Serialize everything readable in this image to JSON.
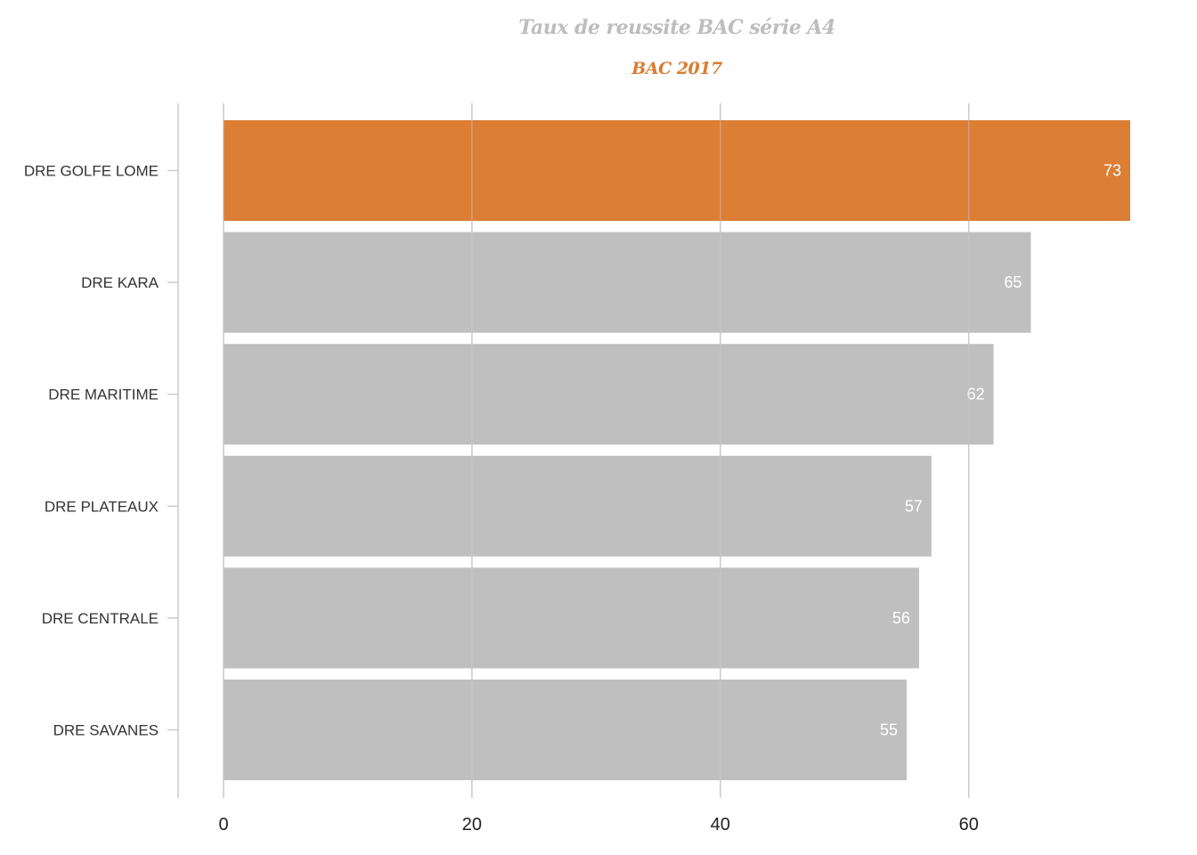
{
  "chart_data": {
    "type": "bar",
    "orientation": "horizontal",
    "title": "Taux de reussite BAC série A4",
    "subtitle": "BAC 2017",
    "categories": [
      "DRE GOLFE LOME",
      "DRE KARA",
      "DRE MARITIME",
      "DRE PLATEAUX",
      "DRE CENTRALE",
      "DRE SAVANES"
    ],
    "values": [
      73,
      65,
      62,
      57,
      56,
      55
    ],
    "data_labels": [
      "73",
      "65",
      "62",
      "57",
      "56",
      "55"
    ],
    "highlight_index": 0,
    "xlim": [
      0,
      73
    ],
    "x_ticks": [
      0,
      20,
      40,
      60
    ],
    "x_tick_labels": [
      "0",
      "20",
      "40",
      "60"
    ],
    "xlabel": "",
    "ylabel": "",
    "grid": "vertical",
    "legend": "none",
    "colors": {
      "highlight": "#db7b30",
      "default": "#bebebe",
      "title": "#bdbdbd",
      "subtitle": "#db7b30",
      "grid": "#cccccc",
      "data_label": "#ffffff"
    }
  }
}
